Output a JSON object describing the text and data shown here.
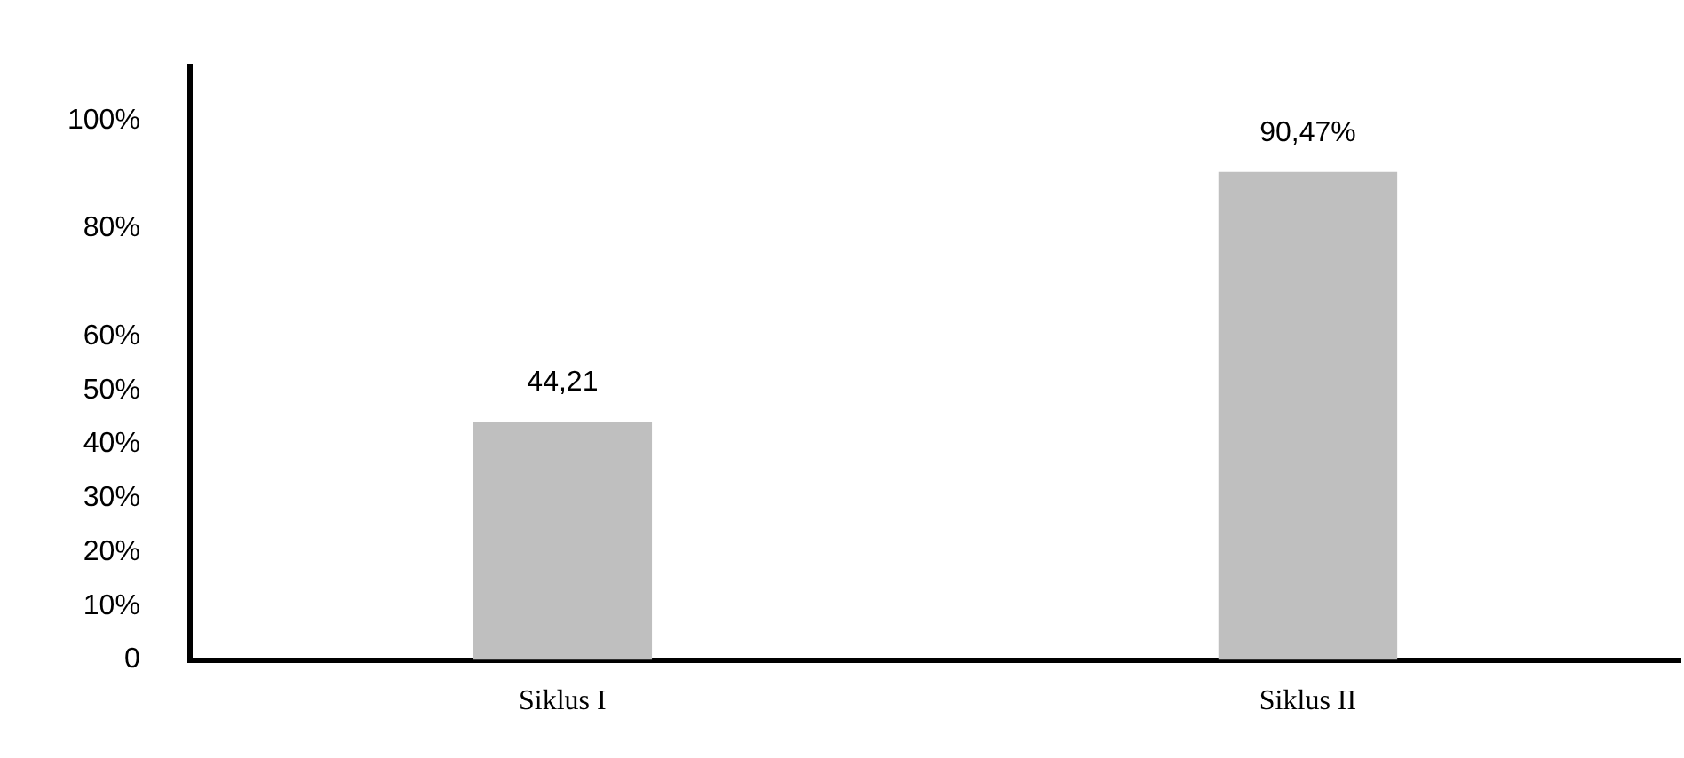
{
  "chart_data": {
    "type": "bar",
    "categories": [
      "Siklus I",
      "Siklus II"
    ],
    "values": [
      44.21,
      90.47
    ],
    "value_labels": [
      "44,21",
      "90,47%"
    ],
    "color": "#bfbfbf",
    "ylim": [
      0,
      110
    ],
    "yticks": [
      0,
      {
        "value": 10,
        "label": "10%"
      },
      {
        "value": 20,
        "label": "20%"
      },
      {
        "value": 30,
        "label": "30%"
      },
      {
        "value": 40,
        "label": "40%"
      },
      {
        "value": 50,
        "label": "50%"
      },
      {
        "value": 60,
        "label": "60%"
      },
      {
        "value": 80,
        "label": "80%"
      },
      {
        "value": 100,
        "label": "100%"
      }
    ],
    "grid": false,
    "legend": false
  }
}
